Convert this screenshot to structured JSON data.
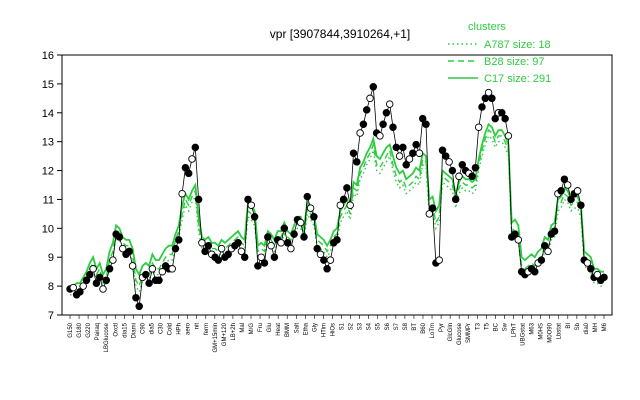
{
  "chart_data": {
    "type": "line",
    "title": "vpr [3907844,3910264,+1]",
    "xlabel": "",
    "ylabel": "",
    "ylim": [
      7,
      16
    ],
    "yticks": [
      7,
      8,
      9,
      10,
      11,
      12,
      13,
      14,
      15,
      16
    ],
    "x_tick_labels": [
      "G150",
      "G180",
      "G220",
      "Pairaq",
      "LBGlucose",
      "Oxctl",
      "dia15",
      "Diami",
      "C90",
      "dia5",
      "C30",
      "Cold",
      "HPh",
      "aero",
      "nit",
      "ferm",
      "GM+15min",
      "GM+120",
      "LB+2h",
      "Mal",
      "M/G",
      "Fru",
      "Glu",
      "Heat",
      "BMM",
      "Salt",
      "Etha",
      "Gly",
      "HTim",
      "HiOs",
      "S1",
      "S2",
      "S3",
      "S4",
      "S5",
      "S6",
      "S7",
      "S8",
      "BT",
      "B60",
      "LoTm",
      "Pyr",
      "GlcGln",
      "Glucose",
      "SMMPr",
      "T3",
      "T5",
      "BC",
      "Sw",
      "LPhT",
      "UBGstat",
      "M63",
      "M0HS",
      "M0O90",
      "Lbstat",
      "BI",
      "Sb",
      "dia0",
      "MH",
      "M6"
    ],
    "colors": {
      "primary": "#2ecc40",
      "data": "#000000"
    },
    "legend": {
      "title": "clusters",
      "position": "top-right",
      "entries": [
        {
          "label": "A787 size: 18",
          "style": "dotted"
        },
        {
          "label": "B28 size: 97",
          "style": "dashed"
        },
        {
          "label": "C17 size: 291",
          "style": "solid"
        }
      ]
    },
    "points": [
      7.9,
      7.95,
      7.7,
      7.8,
      8.0,
      8.2,
      8.4,
      8.6,
      8.1,
      8.3,
      7.9,
      8.2,
      8.6,
      8.9,
      9.8,
      9.7,
      9.3,
      9.1,
      9.2,
      8.7,
      7.6,
      7.3,
      8.3,
      8.4,
      8.1,
      8.6,
      8.2,
      8.2,
      8.5,
      8.7,
      8.6,
      8.6,
      9.3,
      9.6,
      11.2,
      12.1,
      11.9,
      12.4,
      12.8,
      11.0,
      9.5,
      9.2,
      9.4,
      9.1,
      9.0,
      8.9,
      9.3,
      9.0,
      9.1,
      9.3,
      9.4,
      9.5,
      9.2,
      9.0,
      11.0,
      10.8,
      10.4,
      8.7,
      9.0,
      8.8,
      9.7,
      9.4,
      9.0,
      9.6,
      9.5,
      10.0,
      9.5,
      9.3,
      9.8,
      10.3,
      10.2,
      9.7,
      11.1,
      10.7,
      10.4,
      9.3,
      9.1,
      8.9,
      8.6,
      8.9,
      9.5,
      9.6,
      10.8,
      11.0,
      11.4,
      10.8,
      12.6,
      12.3,
      13.3,
      13.6,
      14.1,
      14.5,
      14.9,
      13.3,
      13.2,
      13.6,
      14.0,
      14.3,
      13.5,
      12.8,
      12.5,
      12.8,
      12.2,
      12.4,
      12.6,
      12.9,
      12.6,
      13.8,
      13.6,
      10.5,
      10.7,
      8.8,
      8.9,
      12.7,
      12.5,
      12.3,
      12.0,
      11.0,
      11.8,
      12.2,
      12.0,
      11.9,
      11.8,
      12.1,
      13.5,
      14.2,
      14.5,
      14.7,
      14.5,
      13.8,
      14.0,
      14.0,
      13.8,
      13.2,
      9.7,
      9.8,
      9.6,
      8.5,
      8.4,
      8.5,
      8.6,
      8.5,
      8.8,
      8.9,
      9.4,
      9.2,
      9.8,
      9.9,
      11.2,
      11.3,
      11.7,
      11.5,
      11.0,
      11.2,
      11.3,
      10.8,
      8.9,
      8.8,
      8.6,
      8.3,
      8.4,
      8.2,
      8.3
    ],
    "series": [
      {
        "style": "solid",
        "values": [
          8.0,
          8.0,
          8.1,
          8.1,
          8.3,
          8.5,
          8.8,
          9.0,
          8.6,
          8.8,
          8.4,
          8.6,
          9.2,
          9.5,
          10.1,
          10.0,
          9.7,
          9.6,
          9.6,
          9.3,
          8.6,
          8.4,
          8.7,
          8.8,
          8.7,
          9.1,
          8.9,
          8.9,
          9.1,
          9.3,
          9.4,
          9.4,
          9.8,
          10.1,
          10.8,
          11.2,
          11.0,
          11.3,
          11.5,
          10.4,
          9.7,
          9.6,
          9.7,
          9.5,
          9.5,
          9.4,
          9.6,
          9.5,
          9.6,
          9.7,
          9.8,
          9.9,
          9.7,
          9.6,
          10.9,
          10.8,
          10.6,
          9.4,
          9.5,
          9.4,
          9.9,
          9.8,
          9.6,
          9.9,
          9.9,
          10.2,
          9.9,
          9.8,
          10.1,
          10.4,
          10.4,
          10.0,
          10.9,
          10.7,
          10.5,
          9.8,
          9.7,
          9.6,
          9.4,
          9.6,
          9.9,
          10.0,
          10.6,
          10.8,
          11.0,
          10.7,
          11.6,
          11.5,
          12.1,
          12.3,
          12.6,
          12.8,
          13.1,
          12.5,
          12.4,
          12.6,
          12.8,
          12.9,
          12.5,
          12.1,
          11.9,
          12.0,
          11.7,
          11.8,
          11.9,
          12.1,
          12.0,
          12.6,
          12.5,
          11.0,
          11.1,
          10.6,
          10.8,
          12.0,
          11.9,
          11.8,
          11.7,
          11.2,
          11.6,
          11.8,
          11.7,
          11.7,
          11.6,
          11.7,
          12.4,
          12.9,
          13.3,
          13.6,
          13.5,
          13.2,
          13.4,
          13.4,
          13.2,
          12.9,
          10.2,
          10.3,
          10.1,
          9.0,
          8.9,
          9.0,
          9.1,
          9.0,
          9.2,
          9.3,
          9.7,
          9.6,
          10.1,
          10.2,
          11.0,
          11.1,
          11.4,
          11.3,
          11.0,
          11.1,
          11.1,
          10.8,
          9.2,
          9.1,
          9.0,
          8.6,
          8.6,
          8.5,
          8.5
        ]
      },
      {
        "style": "dashed",
        "values": [
          7.9,
          7.9,
          7.9,
          8.0,
          8.1,
          8.3,
          8.6,
          8.8,
          8.4,
          8.6,
          8.1,
          8.3,
          8.9,
          9.2,
          9.9,
          9.8,
          9.5,
          9.4,
          9.4,
          9.0,
          8.2,
          8.0,
          8.4,
          8.5,
          8.4,
          8.8,
          8.6,
          8.6,
          8.8,
          9.0,
          9.1,
          9.1,
          9.6,
          9.9,
          10.5,
          11.0,
          10.8,
          11.1,
          11.3,
          10.1,
          9.5,
          9.4,
          9.5,
          9.3,
          9.3,
          9.2,
          9.4,
          9.3,
          9.4,
          9.5,
          9.6,
          9.7,
          9.5,
          9.4,
          10.6,
          10.5,
          10.3,
          9.2,
          9.3,
          9.2,
          9.7,
          9.6,
          9.4,
          9.7,
          9.7,
          10.0,
          9.7,
          9.6,
          9.9,
          10.2,
          10.2,
          9.8,
          10.7,
          10.5,
          10.3,
          9.6,
          9.5,
          9.4,
          9.2,
          9.4,
          9.7,
          9.8,
          10.4,
          10.6,
          10.8,
          10.5,
          11.4,
          11.3,
          11.9,
          12.1,
          12.4,
          12.6,
          12.9,
          12.2,
          12.1,
          12.3,
          12.5,
          12.7,
          12.2,
          11.8,
          11.6,
          11.7,
          11.4,
          11.5,
          11.6,
          11.8,
          11.7,
          12.4,
          12.3,
          10.7,
          10.8,
          10.2,
          10.4,
          11.8,
          11.7,
          11.6,
          11.5,
          10.9,
          11.4,
          11.6,
          11.5,
          11.5,
          11.4,
          11.5,
          12.2,
          12.7,
          13.1,
          13.4,
          13.3,
          13.0,
          13.2,
          13.2,
          13.0,
          12.7,
          9.9,
          10.0,
          9.8,
          8.7,
          8.6,
          8.7,
          8.8,
          8.7,
          8.9,
          9.0,
          9.4,
          9.3,
          9.8,
          9.9,
          10.8,
          10.9,
          11.2,
          11.1,
          10.8,
          10.9,
          10.9,
          10.6,
          8.9,
          8.8,
          8.7,
          8.3,
          8.3,
          8.2,
          8.2
        ]
      },
      {
        "style": "dotted",
        "values": [
          7.7,
          7.7,
          7.7,
          7.8,
          7.9,
          8.1,
          8.4,
          8.6,
          8.2,
          8.4,
          7.9,
          8.1,
          8.7,
          9.0,
          9.7,
          9.6,
          9.3,
          9.2,
          9.2,
          8.8,
          8.0,
          7.8,
          8.2,
          8.3,
          8.2,
          8.6,
          8.4,
          8.4,
          8.6,
          8.8,
          8.9,
          8.9,
          9.4,
          9.7,
          10.3,
          10.8,
          10.6,
          10.9,
          11.1,
          9.9,
          9.3,
          9.2,
          9.3,
          9.1,
          9.1,
          9.0,
          9.2,
          9.1,
          9.2,
          9.3,
          9.4,
          9.5,
          9.3,
          9.2,
          10.4,
          10.3,
          10.1,
          9.0,
          9.1,
          9.0,
          9.5,
          9.4,
          9.2,
          9.5,
          9.5,
          9.8,
          9.5,
          9.4,
          9.7,
          10.0,
          10.0,
          9.6,
          10.5,
          10.3,
          10.1,
          9.4,
          9.3,
          9.2,
          9.0,
          9.2,
          9.5,
          9.6,
          10.2,
          10.4,
          10.6,
          10.3,
          11.2,
          11.1,
          11.7,
          11.9,
          12.2,
          12.4,
          12.7,
          12.0,
          11.9,
          12.1,
          12.3,
          12.5,
          12.0,
          11.6,
          11.4,
          11.5,
          11.2,
          11.3,
          11.4,
          11.6,
          11.5,
          12.2,
          12.1,
          10.5,
          10.6,
          10.0,
          10.2,
          11.6,
          11.5,
          11.4,
          11.3,
          10.7,
          11.2,
          11.4,
          11.3,
          11.3,
          11.2,
          11.3,
          12.0,
          12.5,
          12.9,
          13.2,
          13.1,
          12.8,
          13.0,
          13.0,
          12.8,
          12.5,
          9.7,
          9.8,
          9.6,
          8.5,
          8.4,
          8.5,
          8.6,
          8.5,
          8.7,
          8.8,
          9.2,
          9.1,
          9.6,
          9.7,
          10.6,
          10.7,
          11.0,
          10.9,
          10.6,
          10.7,
          10.7,
          10.4,
          8.7,
          8.6,
          8.5,
          8.1,
          8.1,
          8.0,
          8.0
        ]
      }
    ]
  }
}
